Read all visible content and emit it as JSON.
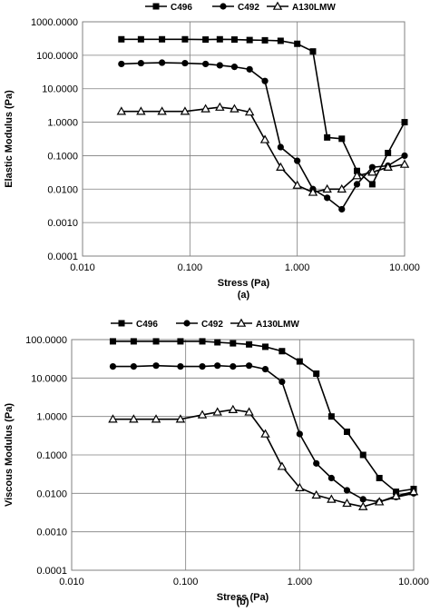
{
  "chart_data": [
    {
      "type": "line",
      "caption": "(a)",
      "xlabel": "Stress (Pa)",
      "ylabel": "Elastic Modulus (Pa)",
      "xscale": "log",
      "yscale": "log",
      "xlim": [
        0.01,
        10
      ],
      "ylim": [
        0.0001,
        1000
      ],
      "xticks": [
        "0.010",
        "0.100",
        "1.000",
        "10.000"
      ],
      "yticks": [
        "0.0001",
        "0.0010",
        "0.0100",
        "0.1000",
        "1.0000",
        "10.0000",
        "100.0000",
        "1000.0000"
      ],
      "grid": true,
      "legend_position": "top",
      "series": [
        {
          "name": "C496",
          "marker": "square",
          "x": [
            0.023,
            0.035,
            0.055,
            0.09,
            0.14,
            0.19,
            0.26,
            0.36,
            0.5,
            0.7,
            1.0,
            1.4,
            1.9,
            2.6,
            3.6,
            5.0,
            7.0,
            10.0
          ],
          "y": [
            300,
            300,
            300,
            300,
            295,
            300,
            295,
            285,
            280,
            270,
            220,
            130,
            0.35,
            0.32,
            0.035,
            0.014,
            0.12,
            1.0
          ]
        },
        {
          "name": "C492",
          "marker": "circle",
          "x": [
            0.023,
            0.035,
            0.055,
            0.09,
            0.14,
            0.19,
            0.26,
            0.36,
            0.5,
            0.7,
            1.0,
            1.4,
            1.9,
            2.6,
            3.6,
            5.0,
            7.0,
            10.0
          ],
          "y": [
            55,
            58,
            60,
            58,
            55,
            50,
            45,
            38,
            17,
            0.18,
            0.07,
            0.01,
            0.0055,
            0.0025,
            0.014,
            0.045,
            0.05,
            0.1
          ]
        },
        {
          "name": "A130LMW",
          "marker": "triangle",
          "x": [
            0.023,
            0.035,
            0.055,
            0.09,
            0.14,
            0.19,
            0.26,
            0.36,
            0.5,
            0.7,
            1.0,
            1.4,
            1.9,
            2.6,
            3.6,
            5.0,
            7.0,
            10.0
          ],
          "y": [
            2.1,
            2.1,
            2.1,
            2.1,
            2.5,
            2.8,
            2.5,
            2.0,
            0.3,
            0.045,
            0.013,
            0.008,
            0.01,
            0.01,
            0.025,
            0.032,
            0.045,
            0.055
          ]
        }
      ]
    },
    {
      "type": "line",
      "caption": "(b)",
      "xlabel": "Stress (Pa)",
      "ylabel": "Viscous Modulus (Pa)",
      "xscale": "log",
      "yscale": "log",
      "xlim": [
        0.01,
        10
      ],
      "ylim": [
        0.0001,
        100
      ],
      "xticks": [
        "0.010",
        "0.100",
        "1.000",
        "10.000"
      ],
      "yticks": [
        "0.0001",
        "0.0010",
        "0.0100",
        "0.1000",
        "1.0000",
        "10.0000",
        "100.0000"
      ],
      "grid": true,
      "legend_position": "top",
      "series": [
        {
          "name": "C496",
          "marker": "square",
          "x": [
            0.023,
            0.035,
            0.055,
            0.09,
            0.14,
            0.19,
            0.26,
            0.36,
            0.5,
            0.7,
            1.0,
            1.4,
            1.9,
            2.6,
            3.6,
            5.0,
            7.0,
            10.0
          ],
          "y": [
            90,
            90,
            90,
            90,
            90,
            85,
            80,
            75,
            65,
            50,
            27,
            13,
            1.0,
            0.4,
            0.1,
            0.025,
            0.011,
            0.013
          ]
        },
        {
          "name": "C492",
          "marker": "circle",
          "x": [
            0.023,
            0.035,
            0.055,
            0.09,
            0.14,
            0.19,
            0.26,
            0.36,
            0.5,
            0.7,
            1.0,
            1.4,
            1.9,
            2.6,
            3.6,
            5.0,
            7.0,
            10.0
          ],
          "y": [
            20,
            20,
            21,
            20,
            20,
            21,
            20,
            21,
            17,
            8,
            0.35,
            0.06,
            0.025,
            0.012,
            0.007,
            0.006,
            0.008,
            0.01
          ]
        },
        {
          "name": "A130LMW",
          "marker": "triangle",
          "x": [
            0.023,
            0.035,
            0.055,
            0.09,
            0.14,
            0.19,
            0.26,
            0.36,
            0.5,
            0.7,
            1.0,
            1.4,
            1.9,
            2.6,
            3.6,
            5.0,
            7.0,
            10.0
          ],
          "y": [
            0.85,
            0.85,
            0.85,
            0.85,
            1.1,
            1.3,
            1.5,
            1.3,
            0.35,
            0.05,
            0.014,
            0.009,
            0.007,
            0.0055,
            0.0045,
            0.006,
            0.0085,
            0.011
          ]
        }
      ]
    }
  ]
}
